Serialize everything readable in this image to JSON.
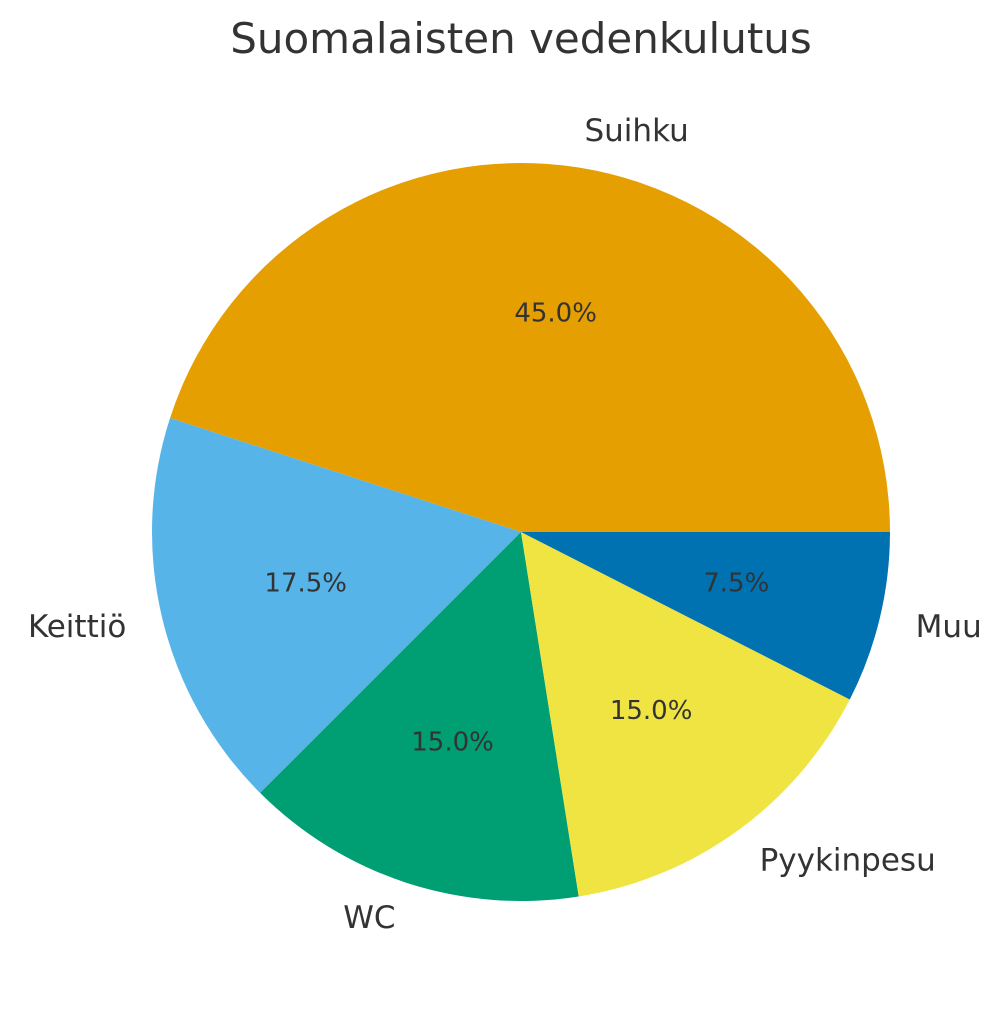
{
  "chart_data": {
    "type": "pie",
    "title": "Suomalaisten vedenkulutus",
    "slices": [
      {
        "label": "Suihku",
        "value": 45.0,
        "pct_label": "45.0%",
        "color": "#E69F00"
      },
      {
        "label": "Keittiö",
        "value": 17.5,
        "pct_label": "17.5%",
        "color": "#56B4E9"
      },
      {
        "label": "WC",
        "value": 15.0,
        "pct_label": "15.0%",
        "color": "#009E73"
      },
      {
        "label": "Pyykinpesu",
        "value": 15.0,
        "pct_label": "15.0%",
        "color": "#F0E442"
      },
      {
        "label": "Muu",
        "value": 7.5,
        "pct_label": "7.5%",
        "color": "#0072B2"
      }
    ],
    "start_angle_deg": 0,
    "direction": "counterclockwise"
  }
}
